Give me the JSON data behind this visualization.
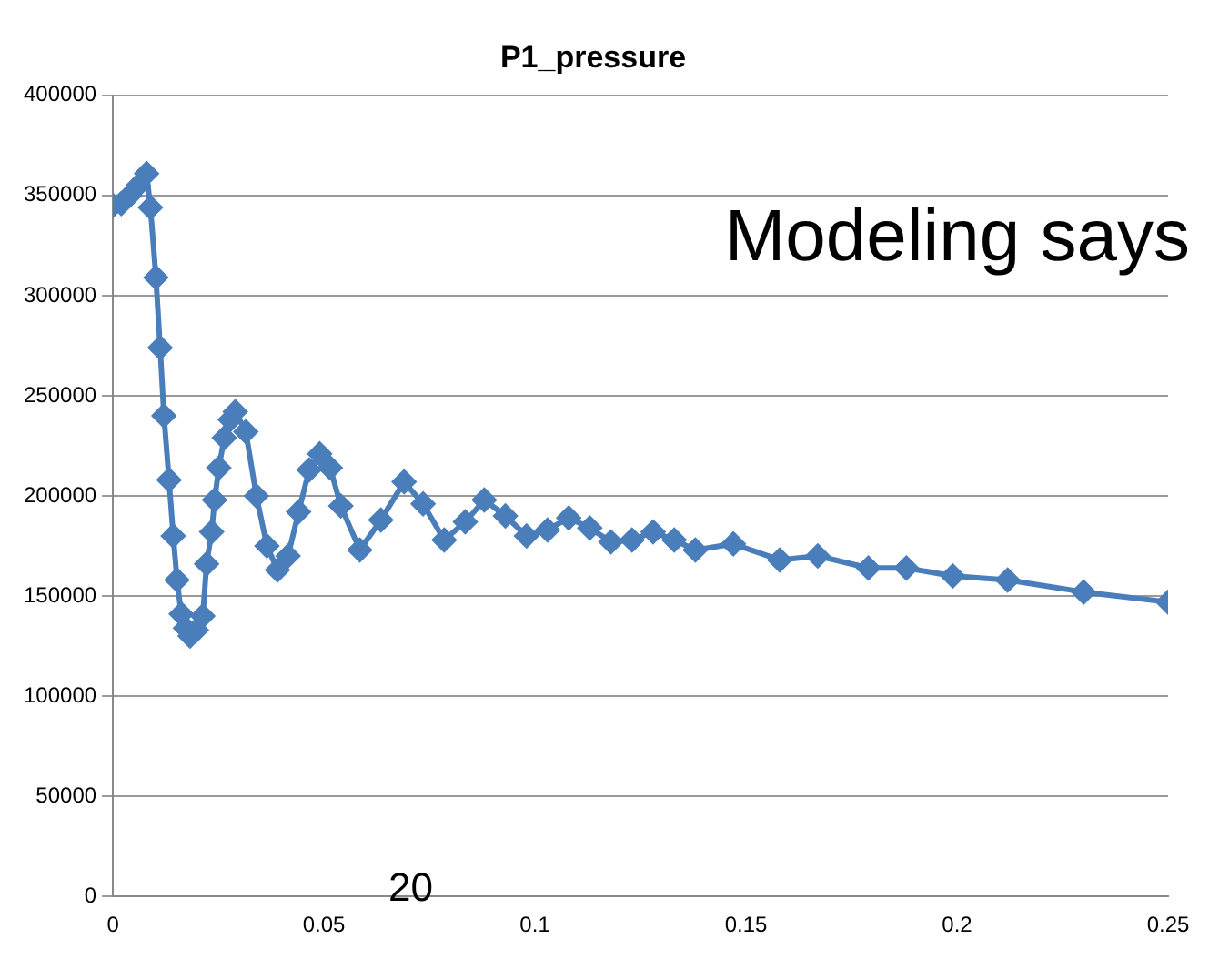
{
  "chart_data": {
    "type": "line",
    "title": "P1_pressure",
    "marker": "diamond",
    "grid": "y",
    "legend": false,
    "xlim": [
      0,
      0.25
    ],
    "xticks": [
      0,
      0.05,
      0.1,
      0.15,
      0.2,
      0.25
    ],
    "ylim": [
      0,
      400000
    ],
    "yticks": [
      0,
      50000,
      100000,
      150000,
      200000,
      250000,
      300000,
      350000,
      400000
    ],
    "annotations": [
      "Modeling says",
      "20"
    ],
    "series": [
      {
        "color": "#4a7ebb",
        "x": [
          0,
          0.002,
          0.004,
          0.006,
          0.008,
          0.0089,
          0.0102,
          0.0112,
          0.0121,
          0.0133,
          0.0143,
          0.0152,
          0.0162,
          0.0172,
          0.0183,
          0.0198,
          0.0213,
          0.0222,
          0.0234,
          0.0241,
          0.0251,
          0.0264,
          0.0278,
          0.029,
          0.0315,
          0.034,
          0.0365,
          0.039,
          0.0415,
          0.044,
          0.0465,
          0.049,
          0.0515,
          0.054,
          0.0585,
          0.0635,
          0.069,
          0.0735,
          0.0785,
          0.0835,
          0.088,
          0.093,
          0.098,
          0.103,
          0.108,
          0.113,
          0.118,
          0.123,
          0.128,
          0.133,
          0.138,
          0.147,
          0.158,
          0.167,
          0.179,
          0.188,
          0.199,
          0.212,
          0.23,
          0.25
        ],
        "values": [
          345000,
          346000,
          350000,
          355000,
          361000,
          344000,
          309000,
          274000,
          240000,
          208000,
          180000,
          158000,
          141000,
          134000,
          130000,
          133000,
          140000,
          166000,
          182000,
          198000,
          214000,
          229000,
          238000,
          242000,
          232000,
          200000,
          175000,
          163000,
          170000,
          192000,
          213000,
          221000,
          214000,
          195000,
          173000,
          188000,
          207000,
          196000,
          178000,
          187000,
          198000,
          190000,
          180000,
          183000,
          189000,
          184000,
          177000,
          178000,
          182000,
          178000,
          173000,
          176000,
          168000,
          170000,
          164000,
          164000,
          160000,
          158000,
          152000,
          147000
        ]
      }
    ]
  }
}
